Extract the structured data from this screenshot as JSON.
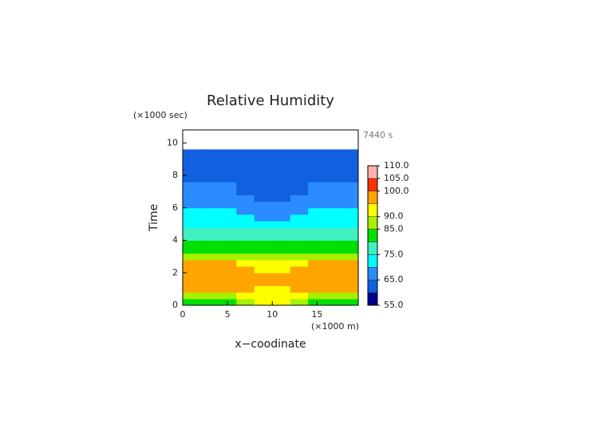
{
  "chart_data": {
    "type": "heatmap",
    "title": "Relative Humidity",
    "y_unit_label": "(×1000 sec)",
    "x_unit_label": "(×1000 m)",
    "time_label": "7440 s",
    "x_label": "x−coodinate",
    "y_label": "Time",
    "x": [
      1,
      3,
      5,
      7,
      9,
      11,
      13,
      15,
      17,
      19
    ],
    "y": [
      0.2,
      0.6,
      1.0,
      1.4,
      1.8,
      2.2,
      2.6,
      3.0,
      3.4,
      3.8,
      4.2,
      4.6,
      5.0,
      5.4,
      5.8,
      6.2,
      6.6,
      7.0,
      7.4,
      7.8,
      8.2,
      8.6,
      9.0,
      9.4
    ],
    "z": [
      [
        83,
        83,
        83,
        85,
        91,
        91,
        85,
        83,
        83,
        83
      ],
      [
        88,
        88,
        88,
        90,
        93,
        93,
        90,
        88,
        88,
        88
      ],
      [
        96,
        96,
        96,
        95,
        92,
        92,
        95,
        96,
        96,
        96
      ],
      [
        97,
        97,
        97,
        97,
        97,
        97,
        97,
        97,
        97,
        97
      ],
      [
        97,
        97,
        97,
        97,
        96,
        96,
        97,
        97,
        97,
        97
      ],
      [
        96,
        96,
        96,
        95,
        94,
        94,
        95,
        96,
        96,
        96
      ],
      [
        95.5,
        95.5,
        95.5,
        94,
        92,
        92,
        94,
        95.5,
        95.5,
        95.5
      ],
      [
        88,
        88,
        88,
        88,
        89,
        89,
        88,
        88,
        88,
        88
      ],
      [
        84,
        84,
        84,
        84,
        84,
        84,
        84,
        84,
        84,
        84
      ],
      [
        81,
        81,
        81,
        81,
        81,
        81,
        81,
        81,
        81,
        81
      ],
      [
        78,
        78,
        78,
        78,
        78,
        78,
        78,
        78,
        78,
        78
      ],
      [
        76,
        76,
        76,
        76,
        76,
        76,
        76,
        76,
        76,
        76
      ],
      [
        73,
        73,
        73,
        73,
        73,
        73,
        73,
        73,
        73,
        73
      ],
      [
        71,
        71,
        71,
        70,
        69,
        69,
        70,
        71,
        71,
        71
      ],
      [
        70.5,
        70.5,
        70.5,
        69,
        68,
        68,
        69,
        70.5,
        70.5,
        70.5
      ],
      [
        69,
        69,
        69,
        67,
        66,
        66,
        67,
        69,
        69,
        69
      ],
      [
        68,
        68,
        68,
        65,
        63,
        63,
        65,
        68,
        68,
        68
      ],
      [
        67,
        67,
        67,
        64,
        62,
        62,
        64,
        67,
        67,
        67
      ],
      [
        65.5,
        65.5,
        65.5,
        63,
        62,
        62,
        63,
        65.5,
        65.5,
        65.5
      ],
      [
        62,
        62,
        62,
        62,
        62,
        62,
        62,
        62,
        62,
        62
      ],
      [
        62,
        62,
        62,
        62,
        62,
        62,
        62,
        62,
        62,
        62
      ],
      [
        62,
        62,
        62,
        62,
        62,
        62,
        62,
        62,
        62,
        62
      ],
      [
        62,
        62,
        62,
        62,
        62,
        62,
        62,
        62,
        62,
        62
      ],
      [
        62,
        62,
        62,
        62,
        62,
        62,
        62,
        62,
        62,
        62
      ]
    ],
    "cell_width": 2,
    "cell_height": 0.4,
    "xlim": [
      0,
      19.6
    ],
    "ylim": [
      0,
      10.8
    ],
    "xticks": [
      0,
      5,
      10,
      15
    ],
    "yticks": [
      0,
      2,
      4,
      6,
      8,
      10
    ],
    "levels": [
      55,
      60,
      65,
      70,
      75,
      80,
      85,
      90,
      95,
      100,
      105,
      110
    ],
    "colors": [
      "#00008c",
      "#1060e0",
      "#2a8cff",
      "#00ffff",
      "#40f0c0",
      "#00e000",
      "#a8f000",
      "#ffff00",
      "#ffa500",
      "#ff3000",
      "#ffb0b0"
    ],
    "colorbar_ticks": [
      {
        "value": 55,
        "label": "55.0"
      },
      {
        "value": 65,
        "label": "65.0"
      },
      {
        "value": 75,
        "label": "75.0"
      },
      {
        "value": 85,
        "label": "85.0"
      },
      {
        "value": 90,
        "label": "90.0"
      },
      {
        "value": 100,
        "label": "100.0"
      },
      {
        "value": 105,
        "label": "105.0"
      },
      {
        "value": 110,
        "label": "110.0"
      }
    ]
  }
}
